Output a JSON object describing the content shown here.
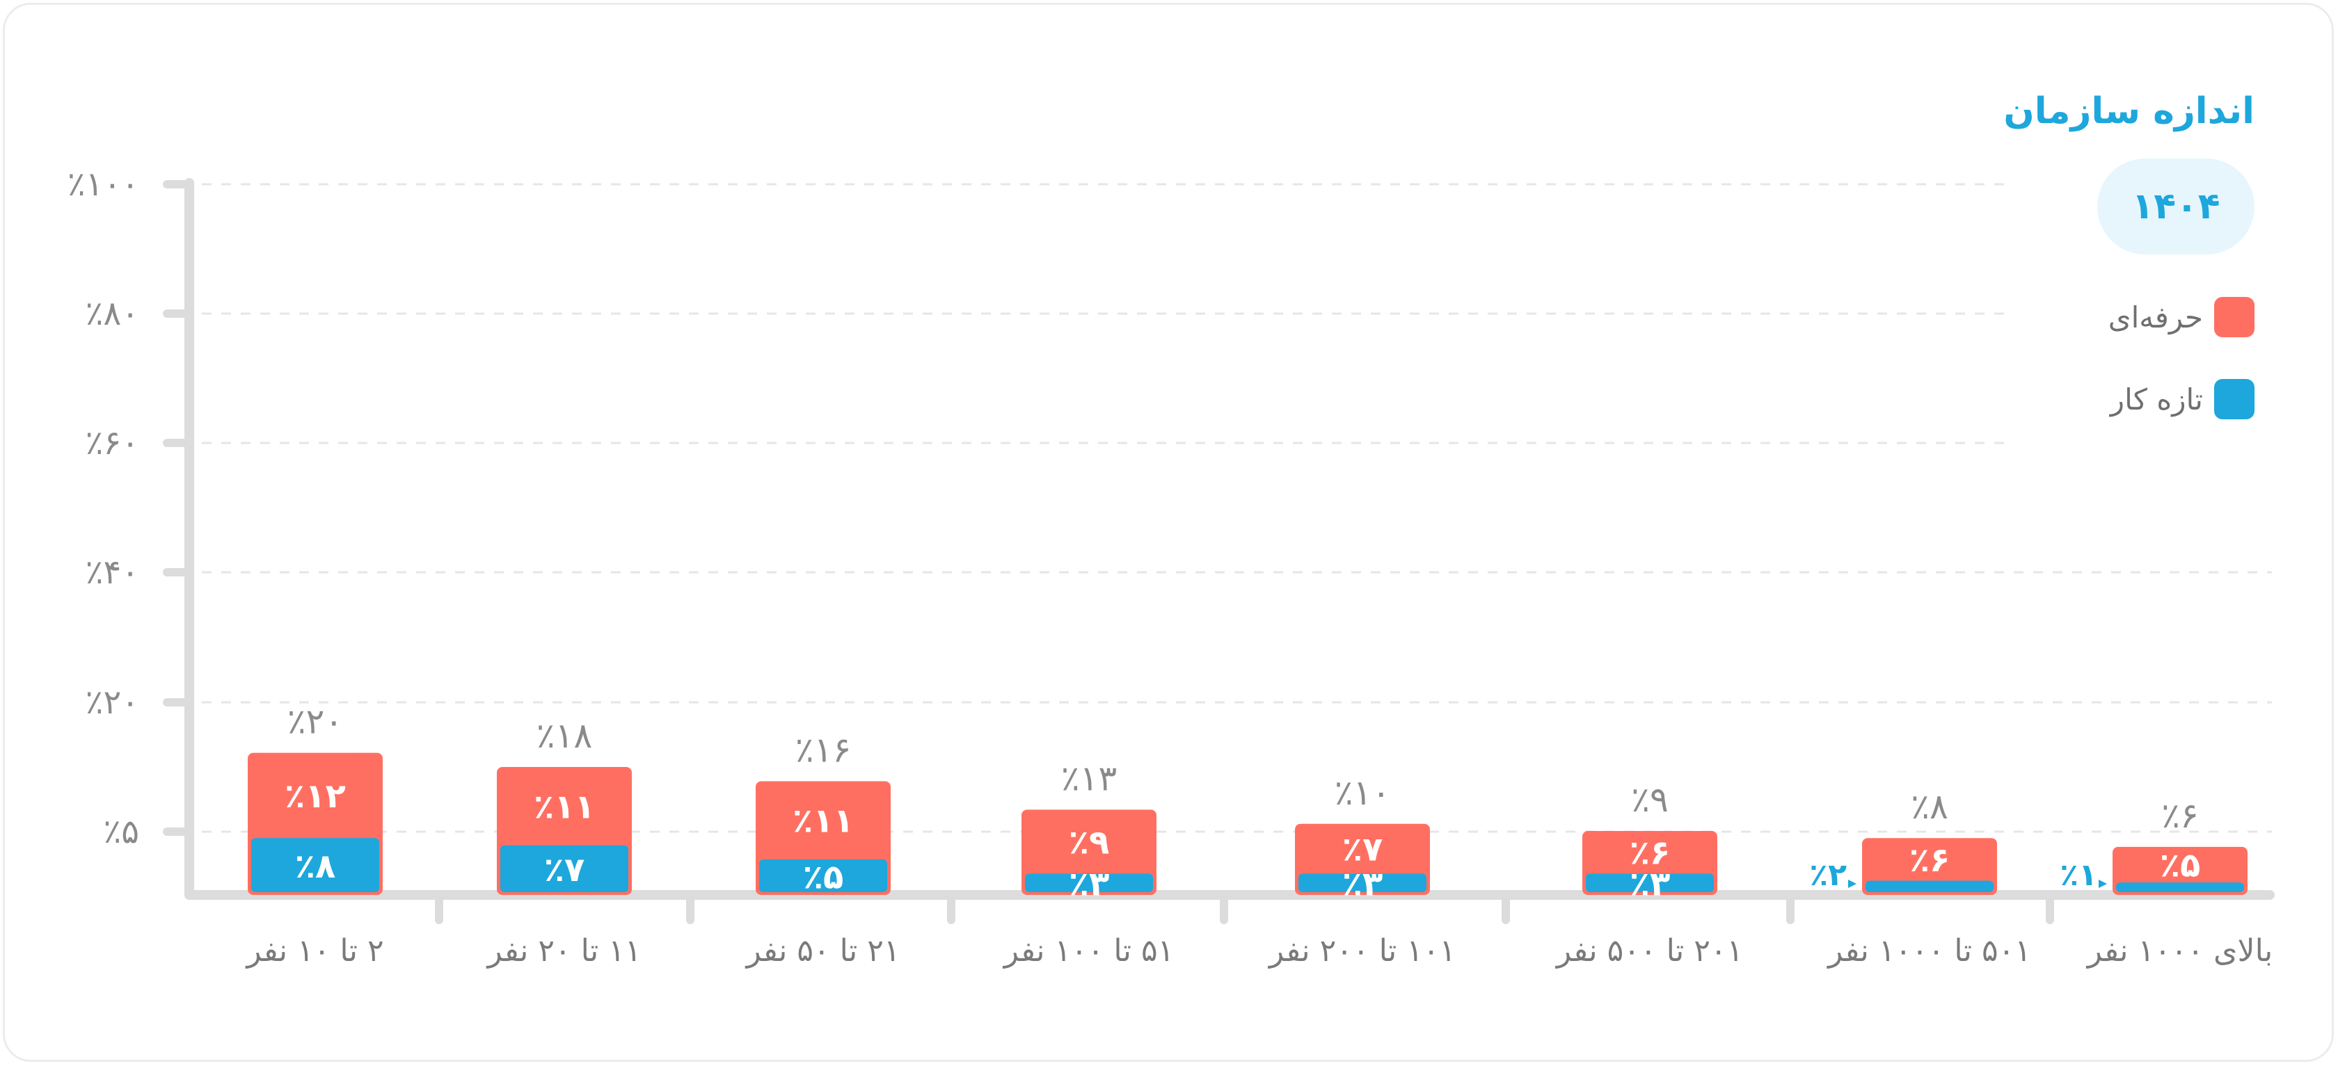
{
  "chart_data": {
    "type": "bar",
    "stacked": true,
    "title": "اندازه سازمان",
    "filter_value": "۱۴۰۴",
    "y_ticks": [
      "٪۵",
      "٪۲۰",
      "٪۴۰",
      "٪۶۰",
      "٪۸۰",
      "٪۱۰۰"
    ],
    "ylim": [
      0,
      100
    ],
    "grid": true,
    "legend_position": "right",
    "categories": [
      "بالای ۱۰۰۰ نفر",
      "۵۰۱ تا ۱۰۰۰ نفر",
      "۲۰۱ تا ۵۰۰ نفر",
      "۱۰۱ تا ۲۰۰ نفر",
      "۵۱ تا ۱۰۰ نفر",
      "۲۱ تا ۵۰ نفر",
      "۱۱ تا ۲۰ نفر",
      "۲ تا ۱۰ نفر"
    ],
    "series": [
      {
        "name": "تازه کار",
        "color": "#1da7dc",
        "values": [
          1,
          2,
          3,
          3,
          3,
          5,
          7,
          8
        ],
        "labels": [
          "٪۱",
          "٪۲",
          "٪۳",
          "٪۳",
          "٪۳",
          "٪۵",
          "٪۷",
          "٪۸"
        ]
      },
      {
        "name": "حرفه‌ای",
        "color": "#ff6f61",
        "values": [
          5,
          6,
          6,
          7,
          9,
          11,
          11,
          12
        ],
        "labels": [
          "٪۵",
          "٪۶",
          "٪۶",
          "٪۷",
          "٪۹",
          "٪۱۱",
          "٪۱۱",
          "٪۱۲"
        ]
      }
    ],
    "totals": [
      6,
      8,
      9,
      10,
      13,
      16,
      18,
      20
    ],
    "total_labels": [
      "٪۶",
      "٪۸",
      "٪۹",
      "٪۱۰",
      "٪۱۳",
      "٪۱۶",
      "٪۱۸",
      "٪۲۰"
    ]
  }
}
